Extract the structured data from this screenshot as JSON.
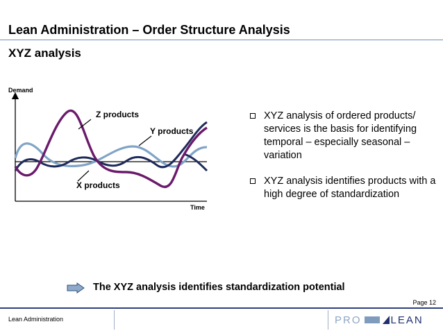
{
  "header": {
    "title": "Lean Administration – Order Structure Analysis",
    "subtitle": "XYZ analysis"
  },
  "diagram": {
    "y_axis_label": "Demand",
    "x_axis_label": "Time",
    "labels": {
      "z": "Z products",
      "y": "Y products",
      "x": "X products"
    },
    "colors": {
      "z_curve": "#6b1a6b",
      "y_curve": "#7fa4c6",
      "x_curve": "#1e2a5a",
      "axis": "#000000"
    }
  },
  "bullets": [
    "XYZ analysis of ordered products/ services is the basis for identifying temporal – especially seasonal – variation",
    "XYZ analysis identifies products with a high degree of standardization"
  ],
  "conclusion": "The XYZ analysis identifies standardization potential",
  "footer": {
    "page": "Page 12",
    "label": "Lean Administration",
    "logo_pro": "PRO",
    "logo_lean": "LEAN"
  }
}
